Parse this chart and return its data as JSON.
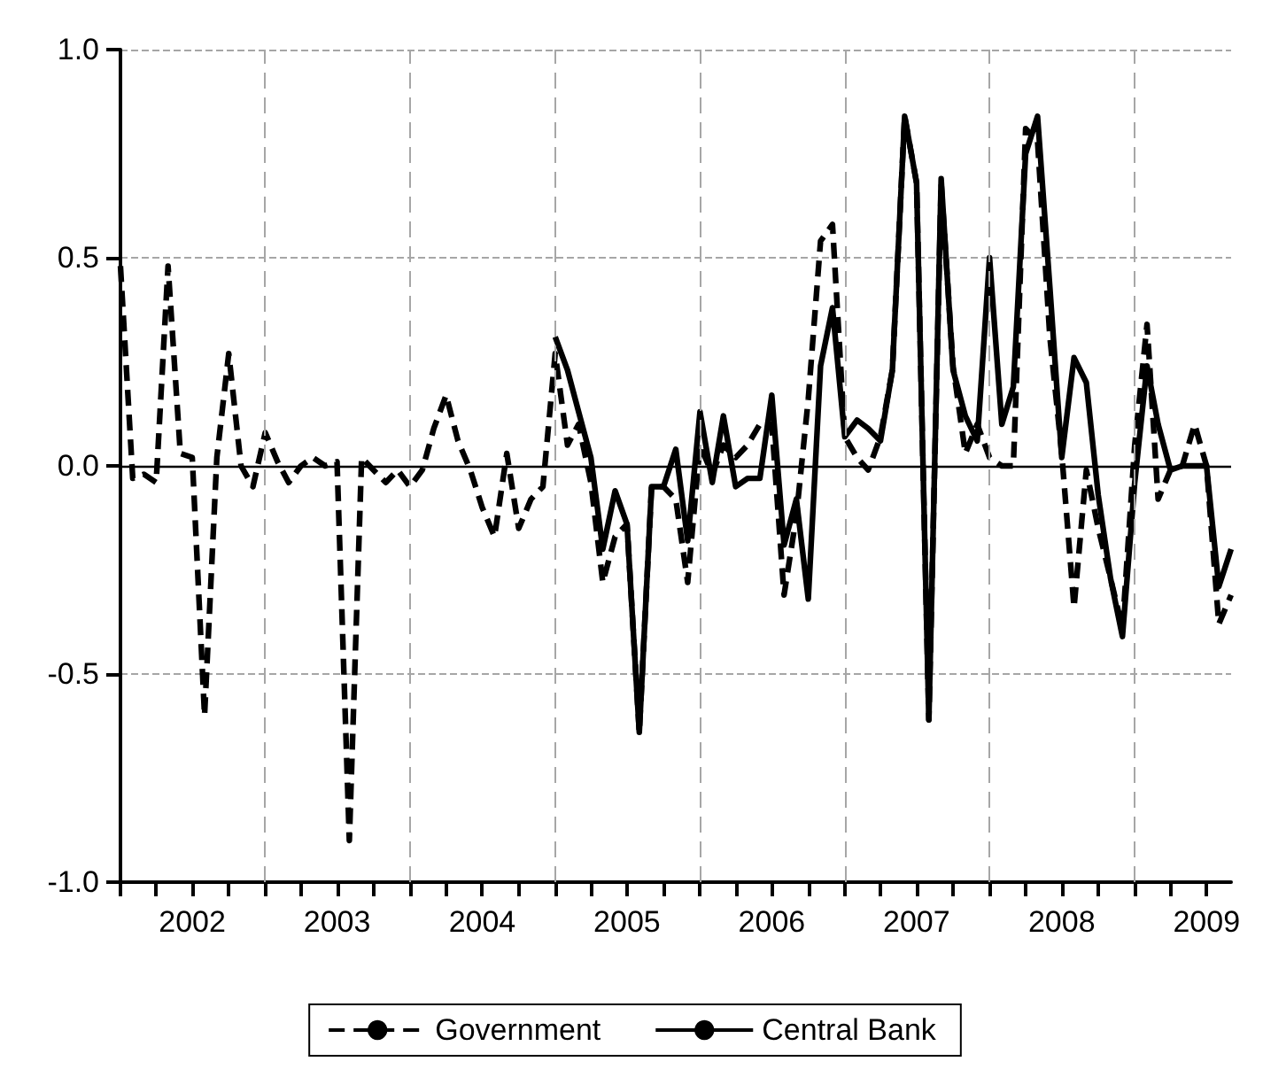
{
  "chart_data": {
    "type": "line",
    "x": [
      "2002-01",
      "2002-02",
      "2002-03",
      "2002-04",
      "2002-05",
      "2002-06",
      "2002-07",
      "2002-08",
      "2002-09",
      "2002-10",
      "2002-11",
      "2002-12",
      "2003-01",
      "2003-02",
      "2003-03",
      "2003-04",
      "2003-05",
      "2003-06",
      "2003-07",
      "2003-08",
      "2003-09",
      "2003-10",
      "2003-11",
      "2003-12",
      "2004-01",
      "2004-02",
      "2004-03",
      "2004-04",
      "2004-05",
      "2004-06",
      "2004-07",
      "2004-08",
      "2004-09",
      "2004-10",
      "2004-11",
      "2004-12",
      "2005-01",
      "2005-02",
      "2005-03",
      "2005-04",
      "2005-05",
      "2005-06",
      "2005-07",
      "2005-08",
      "2005-09",
      "2005-10",
      "2005-11",
      "2005-12",
      "2006-01",
      "2006-02",
      "2006-03",
      "2006-04",
      "2006-05",
      "2006-06",
      "2006-07",
      "2006-08",
      "2006-09",
      "2006-10",
      "2006-11",
      "2006-12",
      "2007-01",
      "2007-02",
      "2007-03",
      "2007-04",
      "2007-05",
      "2007-06",
      "2007-07",
      "2007-08",
      "2007-09",
      "2007-10",
      "2007-11",
      "2007-12",
      "2008-01",
      "2008-02",
      "2008-03",
      "2008-04",
      "2008-05",
      "2008-06",
      "2008-07",
      "2008-08",
      "2008-09",
      "2008-10",
      "2008-11",
      "2008-12",
      "2009-01",
      "2009-02",
      "2009-03",
      "2009-04",
      "2009-05",
      "2009-06",
      "2009-07",
      "2009-08",
      "2009-09"
    ],
    "series": [
      {
        "name": "Government",
        "color": "#000000",
        "line_style": "dashed",
        "values": [
          0.48,
          -0.03,
          -0.02,
          -0.04,
          0.48,
          0.03,
          0.02,
          -0.6,
          0.02,
          0.27,
          0.0,
          -0.05,
          0.08,
          0.01,
          -0.04,
          0.0,
          0.02,
          0.0,
          0.01,
          -0.9,
          0.02,
          -0.01,
          -0.04,
          -0.01,
          -0.05,
          -0.01,
          0.09,
          0.17,
          0.06,
          -0.01,
          -0.1,
          -0.17,
          0.03,
          -0.15,
          -0.08,
          -0.05,
          0.27,
          0.05,
          0.1,
          -0.04,
          -0.28,
          -0.17,
          -0.14,
          -0.64,
          -0.05,
          -0.05,
          -0.08,
          -0.28,
          0.05,
          -0.02,
          0.05,
          0.02,
          0.05,
          0.1,
          0.1,
          -0.31,
          -0.12,
          0.16,
          0.54,
          0.58,
          0.07,
          0.02,
          -0.01,
          0.07,
          0.23,
          0.84,
          0.68,
          -0.61,
          0.68,
          0.24,
          0.03,
          0.1,
          0.02,
          0.0,
          0.0,
          0.81,
          0.78,
          0.31,
          0.03,
          -0.34,
          -0.01,
          -0.15,
          -0.27,
          -0.39,
          0.05,
          0.34,
          -0.08,
          -0.01,
          0.0,
          0.1,
          0.0,
          -0.38,
          -0.31
        ]
      },
      {
        "name": "Central Bank",
        "color": "#000000",
        "line_style": "solid",
        "values": [
          null,
          null,
          null,
          null,
          null,
          null,
          null,
          null,
          null,
          null,
          null,
          null,
          null,
          null,
          null,
          null,
          null,
          null,
          null,
          null,
          null,
          null,
          null,
          null,
          null,
          null,
          null,
          null,
          null,
          null,
          null,
          null,
          null,
          null,
          null,
          null,
          0.31,
          0.23,
          0.13,
          0.02,
          -0.2,
          -0.06,
          -0.14,
          -0.64,
          -0.05,
          -0.05,
          0.04,
          -0.18,
          0.13,
          -0.04,
          0.12,
          -0.05,
          -0.03,
          -0.03,
          0.17,
          -0.19,
          -0.08,
          -0.32,
          0.24,
          0.38,
          0.07,
          0.11,
          0.09,
          0.06,
          0.23,
          0.84,
          0.68,
          -0.61,
          0.69,
          0.23,
          0.12,
          0.06,
          0.5,
          0.1,
          0.19,
          0.75,
          0.84,
          0.43,
          0.02,
          0.26,
          0.2,
          -0.07,
          -0.27,
          -0.41,
          -0.04,
          0.24,
          0.1,
          -0.01,
          0.0,
          0.0,
          0.0,
          -0.29,
          -0.2
        ]
      }
    ],
    "xlim": [
      "2002-01",
      "2009-09"
    ],
    "xticks": [
      {
        "value": "2002-01",
        "label": null
      },
      {
        "value": "2002-04",
        "label": null
      },
      {
        "value": "2002-07",
        "label": "2002"
      },
      {
        "value": "2002-10",
        "label": null
      },
      {
        "value": "2003-01",
        "label": null
      },
      {
        "value": "2003-04",
        "label": null
      },
      {
        "value": "2003-07",
        "label": "2003"
      },
      {
        "value": "2003-10",
        "label": null
      },
      {
        "value": "2004-01",
        "label": null
      },
      {
        "value": "2004-04",
        "label": null
      },
      {
        "value": "2004-07",
        "label": "2004"
      },
      {
        "value": "2004-10",
        "label": null
      },
      {
        "value": "2005-01",
        "label": null
      },
      {
        "value": "2005-04",
        "label": null
      },
      {
        "value": "2005-07",
        "label": "2005"
      },
      {
        "value": "2005-10",
        "label": null
      },
      {
        "value": "2006-01",
        "label": null
      },
      {
        "value": "2006-04",
        "label": null
      },
      {
        "value": "2006-07",
        "label": "2006"
      },
      {
        "value": "2006-10",
        "label": null
      },
      {
        "value": "2007-01",
        "label": null
      },
      {
        "value": "2007-04",
        "label": null
      },
      {
        "value": "2007-07",
        "label": "2007"
      },
      {
        "value": "2007-10",
        "label": null
      },
      {
        "value": "2008-01",
        "label": null
      },
      {
        "value": "2008-04",
        "label": null
      },
      {
        "value": "2008-07",
        "label": "2008"
      },
      {
        "value": "2008-10",
        "label": null
      },
      {
        "value": "2009-01",
        "label": null
      },
      {
        "value": "2009-04",
        "label": null
      },
      {
        "value": "2009-07",
        "label": "2009"
      }
    ],
    "ylim": [
      -1,
      1
    ],
    "yticks": [
      {
        "value": -1,
        "label": "-1.0"
      },
      -0.5,
      {
        "value": 0,
        "label": "0.0"
      },
      0.5,
      {
        "value": 1,
        "label": "1.0"
      }
    ],
    "ref_lines": [
      {
        "axis": "y",
        "value": 0,
        "color": "#000000",
        "line_style": "solid"
      },
      {
        "axis": "x",
        "value": "2003-01",
        "color": "#a6a6a6",
        "line_style": "dashed"
      },
      {
        "axis": "x",
        "value": "2004-01",
        "color": "#a6a6a6",
        "line_style": "dashed"
      },
      {
        "axis": "x",
        "value": "2005-01",
        "color": "#a6a6a6",
        "line_style": "dashed"
      },
      {
        "axis": "x",
        "value": "2006-01",
        "color": "#a6a6a6",
        "line_style": "dashed"
      },
      {
        "axis": "x",
        "value": "2007-01",
        "color": "#a6a6a6",
        "line_style": "dashed"
      },
      {
        "axis": "x",
        "value": "2008-01",
        "color": "#a6a6a6",
        "line_style": "dashed"
      },
      {
        "axis": "x",
        "value": "2009-01",
        "color": "#a6a6a6",
        "line_style": "dashed"
      }
    ],
    "grid": "y",
    "legend": "bottom",
    "marker": "none"
  }
}
